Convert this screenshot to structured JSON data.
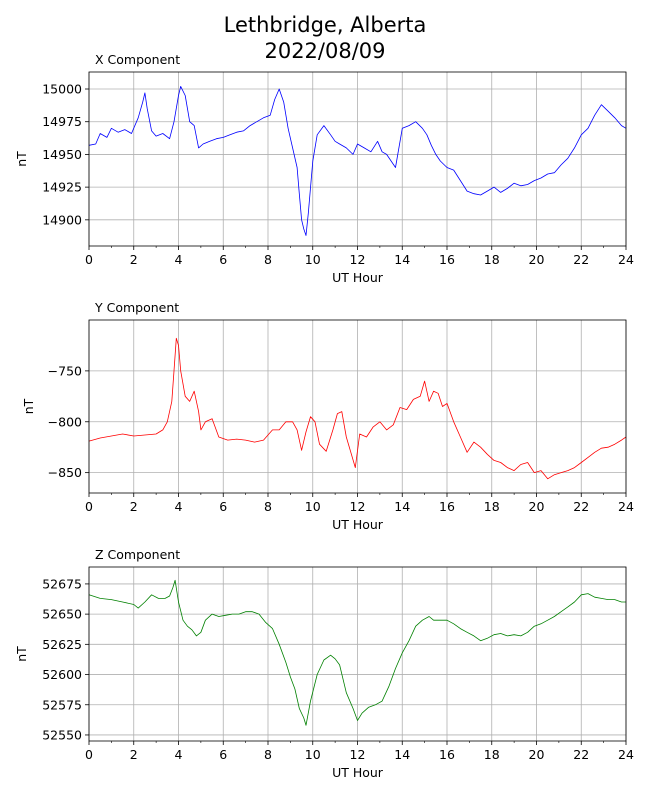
{
  "figure": {
    "title_line1": "Lethbridge, Alberta",
    "title_line2": "2022/08/09"
  },
  "chart_data": [
    {
      "type": "line",
      "subtitle": "X Component",
      "xlabel": "UT Hour",
      "ylabel": "nT",
      "color": "#0000ff",
      "xlim": [
        0,
        24
      ],
      "ylim": [
        14880,
        15013
      ],
      "xticks": [
        0,
        2,
        4,
        6,
        8,
        10,
        12,
        14,
        16,
        18,
        20,
        22,
        24
      ],
      "yticks": [
        14900,
        14925,
        14950,
        14975,
        15000
      ],
      "grid": true,
      "series": [
        {
          "x": [
            0,
            0.3,
            0.5,
            0.8,
            1.0,
            1.3,
            1.6,
            1.9,
            2.2,
            2.4,
            2.5,
            2.6,
            2.8,
            3.0,
            3.3,
            3.6,
            3.8,
            4.0,
            4.1,
            4.3,
            4.5,
            4.7,
            4.9,
            5.1,
            5.4,
            5.7,
            6.0,
            6.3,
            6.6,
            6.9,
            7.2,
            7.5,
            7.8,
            8.1,
            8.3,
            8.5,
            8.7,
            8.9,
            9.1,
            9.3,
            9.4,
            9.5,
            9.6,
            9.7,
            9.8,
            10.0,
            10.2,
            10.5,
            10.8,
            11.0,
            11.2,
            11.5,
            11.8,
            12.0,
            12.3,
            12.6,
            12.9,
            13.1,
            13.3,
            13.5,
            13.7,
            14.0,
            14.3,
            14.6,
            14.9,
            15.1,
            15.3,
            15.5,
            15.7,
            16.0,
            16.3,
            16.6,
            16.9,
            17.2,
            17.5,
            17.8,
            18.1,
            18.4,
            18.7,
            19.0,
            19.3,
            19.6,
            19.9,
            20.2,
            20.5,
            20.8,
            21.1,
            21.4,
            21.7,
            22.0,
            22.3,
            22.6,
            22.9,
            23.2,
            23.5,
            23.8,
            24.0
          ],
          "y": [
            14957,
            14958,
            14966,
            14963,
            14970,
            14967,
            14969,
            14966,
            14978,
            14990,
            14997,
            14985,
            14968,
            14964,
            14966,
            14962,
            14975,
            14995,
            15002,
            14995,
            14975,
            14972,
            14955,
            14958,
            14960,
            14962,
            14963,
            14965,
            14967,
            14968,
            14972,
            14975,
            14978,
            14980,
            14992,
            15000,
            14990,
            14970,
            14955,
            14940,
            14920,
            14900,
            14893,
            14888,
            14905,
            14945,
            14965,
            14972,
            14965,
            14960,
            14958,
            14955,
            14950,
            14958,
            14955,
            14952,
            14960,
            14952,
            14950,
            14945,
            14940,
            14970,
            14972,
            14975,
            14970,
            14965,
            14957,
            14950,
            14945,
            14940,
            14938,
            14930,
            14922,
            14920,
            14919,
            14922,
            14925,
            14921,
            14924,
            14928,
            14926,
            14927,
            14930,
            14932,
            14935,
            14936,
            14942,
            14947,
            14955,
            14965,
            14970,
            14980,
            14988,
            14983,
            14978,
            14972,
            14970
          ]
        }
      ]
    },
    {
      "type": "line",
      "subtitle": "Y Component",
      "xlabel": "UT Hour",
      "ylabel": "nT",
      "color": "#ff0000",
      "xlim": [
        0,
        24
      ],
      "ylim": [
        -870,
        -700
      ],
      "xticks": [
        0,
        2,
        4,
        6,
        8,
        10,
        12,
        14,
        16,
        18,
        20,
        22,
        24
      ],
      "yticks": [
        -850,
        -800,
        -750
      ],
      "grid": true,
      "series": [
        {
          "x": [
            0,
            0.5,
            1.0,
            1.5,
            2.0,
            2.5,
            3.0,
            3.3,
            3.5,
            3.7,
            3.8,
            3.9,
            4.0,
            4.1,
            4.3,
            4.5,
            4.7,
            4.9,
            5.0,
            5.2,
            5.5,
            5.8,
            6.2,
            6.6,
            7.0,
            7.4,
            7.8,
            8.2,
            8.5,
            8.8,
            9.1,
            9.3,
            9.5,
            9.7,
            9.9,
            10.1,
            10.3,
            10.6,
            10.9,
            11.1,
            11.3,
            11.5,
            11.7,
            11.9,
            12.1,
            12.4,
            12.7,
            13.0,
            13.3,
            13.6,
            13.9,
            14.2,
            14.5,
            14.8,
            15.0,
            15.2,
            15.4,
            15.6,
            15.8,
            16.0,
            16.3,
            16.6,
            16.9,
            17.2,
            17.5,
            17.8,
            18.1,
            18.4,
            18.7,
            19.0,
            19.3,
            19.6,
            19.9,
            20.2,
            20.5,
            20.8,
            21.1,
            21.4,
            21.7,
            22.0,
            22.3,
            22.6,
            22.9,
            23.2,
            23.5,
            23.8,
            24.0
          ],
          "y": [
            -819,
            -816,
            -814,
            -812,
            -814,
            -813,
            -812,
            -808,
            -800,
            -780,
            -750,
            -718,
            -725,
            -750,
            -775,
            -780,
            -770,
            -790,
            -808,
            -800,
            -797,
            -815,
            -818,
            -817,
            -818,
            -820,
            -818,
            -808,
            -808,
            -800,
            -800,
            -808,
            -828,
            -810,
            -795,
            -800,
            -822,
            -829,
            -808,
            -792,
            -790,
            -815,
            -830,
            -845,
            -812,
            -815,
            -805,
            -800,
            -808,
            -803,
            -786,
            -788,
            -778,
            -775,
            -760,
            -780,
            -770,
            -772,
            -785,
            -782,
            -800,
            -815,
            -830,
            -820,
            -825,
            -832,
            -838,
            -840,
            -845,
            -848,
            -842,
            -840,
            -850,
            -848,
            -856,
            -852,
            -850,
            -848,
            -845,
            -840,
            -835,
            -830,
            -826,
            -825,
            -822,
            -818,
            -815
          ]
        }
      ]
    },
    {
      "type": "line",
      "subtitle": "Z Component",
      "xlabel": "UT Hour",
      "ylabel": "nT",
      "color": "#008000",
      "xlim": [
        0,
        24
      ],
      "ylim": [
        52545,
        52689
      ],
      "xticks": [
        0,
        2,
        4,
        6,
        8,
        10,
        12,
        14,
        16,
        18,
        20,
        22,
        24
      ],
      "yticks": [
        52550,
        52575,
        52600,
        52625,
        52650,
        52675
      ],
      "grid": true,
      "series": [
        {
          "x": [
            0,
            0.5,
            1.0,
            1.5,
            2.0,
            2.2,
            2.5,
            2.8,
            3.1,
            3.4,
            3.6,
            3.75,
            3.85,
            4.0,
            4.2,
            4.4,
            4.6,
            4.8,
            5.0,
            5.2,
            5.5,
            5.8,
            6.1,
            6.4,
            6.7,
            7.0,
            7.3,
            7.6,
            7.9,
            8.2,
            8.5,
            8.8,
            9.0,
            9.2,
            9.4,
            9.6,
            9.7,
            9.9,
            10.2,
            10.5,
            10.8,
            11.0,
            11.2,
            11.5,
            11.8,
            12.0,
            12.2,
            12.5,
            12.8,
            13.1,
            13.4,
            13.7,
            14.0,
            14.3,
            14.6,
            14.9,
            15.2,
            15.4,
            15.7,
            16.0,
            16.3,
            16.6,
            16.9,
            17.2,
            17.5,
            17.8,
            18.1,
            18.4,
            18.7,
            19.0,
            19.3,
            19.6,
            19.9,
            20.2,
            20.5,
            20.8,
            21.1,
            21.4,
            21.7,
            22.0,
            22.3,
            22.6,
            22.9,
            23.2,
            23.5,
            23.8,
            24.0
          ],
          "y": [
            52666,
            52663,
            52662,
            52660,
            52658,
            52655,
            52660,
            52666,
            52663,
            52663,
            52665,
            52672,
            52678,
            52660,
            52645,
            52640,
            52637,
            52632,
            52635,
            52645,
            52650,
            52648,
            52649,
            52650,
            52650,
            52652,
            52652,
            52650,
            52643,
            52638,
            52625,
            52610,
            52598,
            52588,
            52572,
            52564,
            52558,
            52578,
            52600,
            52612,
            52616,
            52613,
            52608,
            52585,
            52572,
            52562,
            52568,
            52573,
            52575,
            52578,
            52590,
            52605,
            52618,
            52628,
            52640,
            52645,
            52648,
            52645,
            52645,
            52645,
            52642,
            52638,
            52635,
            52632,
            52628,
            52630,
            52633,
            52634,
            52632,
            52633,
            52632,
            52635,
            52640,
            52642,
            52645,
            52648,
            52652,
            52656,
            52660,
            52666,
            52667,
            52664,
            52663,
            52662,
            52662,
            52660,
            52660
          ]
        }
      ]
    }
  ]
}
